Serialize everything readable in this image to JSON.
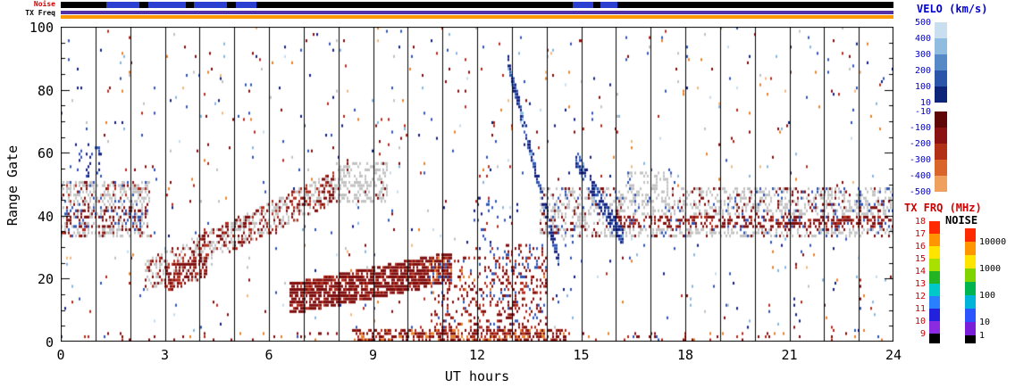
{
  "chart_data": {
    "type": "heatmap",
    "title": "",
    "xlabel": "UT hours",
    "ylabel": "Range Gate",
    "xlim": [
      0,
      24
    ],
    "ylim": [
      0,
      100
    ],
    "xticks": [
      0,
      3,
      6,
      9,
      12,
      15,
      18,
      21,
      24
    ],
    "yticks": [
      0,
      20,
      40,
      60,
      80,
      100
    ],
    "grid": "vertical black line at every UT hour from 0 to 24, full plot height",
    "legend_position": "right",
    "top_strips": [
      {
        "label": "Noise",
        "label_color": "#cc0000",
        "base_color": "#000000",
        "segments": [
          {
            "from": 0.055,
            "to": 0.095,
            "color": "#2b3fd0"
          },
          {
            "from": 0.105,
            "to": 0.15,
            "color": "#2b3fd0"
          },
          {
            "from": 0.16,
            "to": 0.2,
            "color": "#2b3fd0"
          },
          {
            "from": 0.21,
            "to": 0.235,
            "color": "#2b3fd0"
          },
          {
            "from": 0.615,
            "to": 0.64,
            "color": "#2b3fd0"
          },
          {
            "from": 0.648,
            "to": 0.668,
            "color": "#2b3fd0"
          }
        ]
      },
      {
        "label": "TX Freq",
        "label_color": "#000000",
        "rows": [
          {
            "color": "#5230a8"
          },
          {
            "color": "#ff9900"
          }
        ]
      }
    ],
    "colorbars": [
      {
        "title": "VELO (km/s)",
        "title_color": "#0000cc",
        "label_color": "#0000cc",
        "pos_labels": [
          "500",
          "400",
          "300",
          "200",
          "100",
          "10"
        ],
        "neg_labels": [
          "-10",
          "-100",
          "-200",
          "-300",
          "-400",
          "-500"
        ],
        "pos_colors": [
          "#c9dff0",
          "#8fbcdf",
          "#5589c8",
          "#2b55a8",
          "#0e2478"
        ],
        "neg_colors": [
          "#5f0606",
          "#8b1212",
          "#b23015",
          "#d9652a",
          "#efa05f"
        ]
      },
      {
        "title": "TX FRQ (MHz)",
        "title_color": "#cc0000",
        "label_color": "#cc0000",
        "labels": [
          "18",
          "17",
          "16",
          "15",
          "14",
          "13",
          "12",
          "11",
          "10",
          "9"
        ],
        "colors": [
          "#ff2a00",
          "#ff9500",
          "#ffe400",
          "#a8e000",
          "#22b422",
          "#00c8c8",
          "#2a7fff",
          "#2222dd",
          "#8a2be2"
        ],
        "end_cap_color": "#000000"
      },
      {
        "title": "NOISE",
        "title_color": "#000000",
        "label_color": "#000000",
        "labels": [
          "10000",
          "1000",
          "100",
          "10",
          "1"
        ],
        "label_boundaries": [
          1,
          3,
          5,
          7,
          8
        ],
        "colors": [
          "#ff2a00",
          "#ff9500",
          "#ffe400",
          "#7fd400",
          "#00b450",
          "#00b4d9",
          "#2a55ff",
          "#7a1fd9"
        ],
        "end_cap_color": "#000000"
      }
    ],
    "palette": {
      "gray": "#c2c2c2",
      "dkred": "#7e0d0d",
      "red": "#b22a1a",
      "orange": "#e8822a",
      "ltorange": "#f3b97e",
      "dkblue": "#101f7a",
      "blue": "#2f55b4",
      "ltblue": "#86b6e0",
      "paleblue": "#c6dcf0"
    },
    "scatter": {
      "seed": 1337,
      "background_density": 0.016,
      "background_palette": {
        "blue": 4,
        "dkblue": 3,
        "ltblue": 2,
        "paleblue": 1,
        "red": 3,
        "dkred": 3,
        "orange": 2,
        "ltorange": 1,
        "gray": 2
      },
      "features": [
        {
          "type": "band",
          "x": [
            0,
            2.6
          ],
          "y": [
            33,
            50
          ],
          "density": 0.5,
          "palette": {
            "gray": 8,
            "dkred": 2,
            "red": 1,
            "blue": 1
          },
          "note": "ground-scatter band 00-02.5 UT, gates ~33-50"
        },
        {
          "type": "band",
          "x": [
            0,
            2.6
          ],
          "y": [
            36,
            42
          ],
          "density": 0.35,
          "palette": {
            "dkred": 3,
            "gray": 3,
            "blue": 2
          }
        },
        {
          "type": "band",
          "x": [
            0.4,
            1.2
          ],
          "y": [
            52,
            62
          ],
          "density": 0.15,
          "palette": {
            "blue": 4,
            "dkblue": 3
          }
        },
        {
          "type": "diag",
          "from": [
            2.4,
            20
          ],
          "to": [
            8.2,
            50
          ],
          "width": 10,
          "density": 0.5,
          "palette": {
            "gray": 5,
            "dkred": 3,
            "red": 2
          },
          "note": "rising mixed scatter 02.5-08 UT"
        },
        {
          "type": "diag",
          "from": [
            3.0,
            19
          ],
          "to": [
            4.2,
            24
          ],
          "width": 8,
          "density": 0.7,
          "palette": {
            "dkred": 6,
            "red": 2,
            "gray": 1
          }
        },
        {
          "type": "diag",
          "from": [
            7.4,
            44
          ],
          "to": [
            8.3,
            54
          ],
          "width": 7,
          "density": 0.6,
          "palette": {
            "dkred": 4,
            "red": 3,
            "gray": 2
          }
        },
        {
          "type": "band",
          "x": [
            7.9,
            9.4
          ],
          "y": [
            44,
            56
          ],
          "density": 0.35,
          "palette": {
            "gray": 7,
            "dkred": 1
          }
        },
        {
          "type": "diag",
          "from": [
            6.6,
            13
          ],
          "to": [
            11.3,
            23
          ],
          "width": 10,
          "density": 0.82,
          "palette": {
            "dkred": 8,
            "red": 2
          },
          "note": "dense negative-velocity blob 07-11 UT, gates ~13-28"
        },
        {
          "type": "band",
          "x": [
            10.6,
            14.0
          ],
          "y": [
            2,
            26
          ],
          "density": 0.2,
          "palette": {
            "dkred": 4,
            "red": 3,
            "blue": 1,
            "orange": 1
          }
        },
        {
          "type": "band",
          "x": [
            12.4,
            13.9
          ],
          "y": [
            4,
            30
          ],
          "density": 0.28,
          "palette": {
            "dkred": 4,
            "red": 2,
            "blue": 2
          }
        },
        {
          "type": "band",
          "x": [
            11.9,
            12.6
          ],
          "y": [
            28,
            46
          ],
          "density": 0.12,
          "palette": {
            "blue": 4,
            "dkblue": 3,
            "red": 2
          }
        },
        {
          "type": "band",
          "x": [
            13.8,
            24
          ],
          "y": [
            33,
            48
          ],
          "density": 0.42,
          "palette": {
            "gray": 7,
            "dkred": 2,
            "blue": 1
          },
          "note": "ground-scatter band 14-24 UT"
        },
        {
          "type": "band",
          "x": [
            16.2,
            17.6
          ],
          "y": [
            40,
            53
          ],
          "density": 0.3,
          "palette": {
            "gray": 8,
            "blue": 1
          }
        },
        {
          "type": "band",
          "x": [
            16,
            24
          ],
          "y": [
            36,
            39
          ],
          "density": 0.5,
          "palette": {
            "dkred": 6,
            "red": 2,
            "blue": 1
          }
        },
        {
          "type": "band",
          "x": [
            0,
            24
          ],
          "y": [
            0,
            2
          ],
          "density": 0.07,
          "palette": {
            "dkred": 3,
            "red": 2,
            "orange": 1,
            "blue": 1
          }
        },
        {
          "type": "band",
          "x": [
            8.4,
            14.6
          ],
          "y": [
            0,
            3
          ],
          "density": 0.55,
          "palette": {
            "dkred": 5,
            "red": 3,
            "orange": 2
          }
        },
        {
          "type": "diag",
          "from": [
            12.9,
            88
          ],
          "to": [
            14.35,
            25
          ],
          "width": 5,
          "density": 0.8,
          "palette": {
            "dkblue": 6,
            "blue": 3,
            "ltblue": 1
          },
          "note": "descending positive-velocity streak ~13-14.3 UT"
        },
        {
          "type": "diag",
          "from": [
            14.85,
            58
          ],
          "to": [
            16.2,
            32
          ],
          "width": 6,
          "density": 0.65,
          "palette": {
            "dkblue": 5,
            "blue": 3,
            "ltblue": 1
          }
        }
      ]
    }
  }
}
